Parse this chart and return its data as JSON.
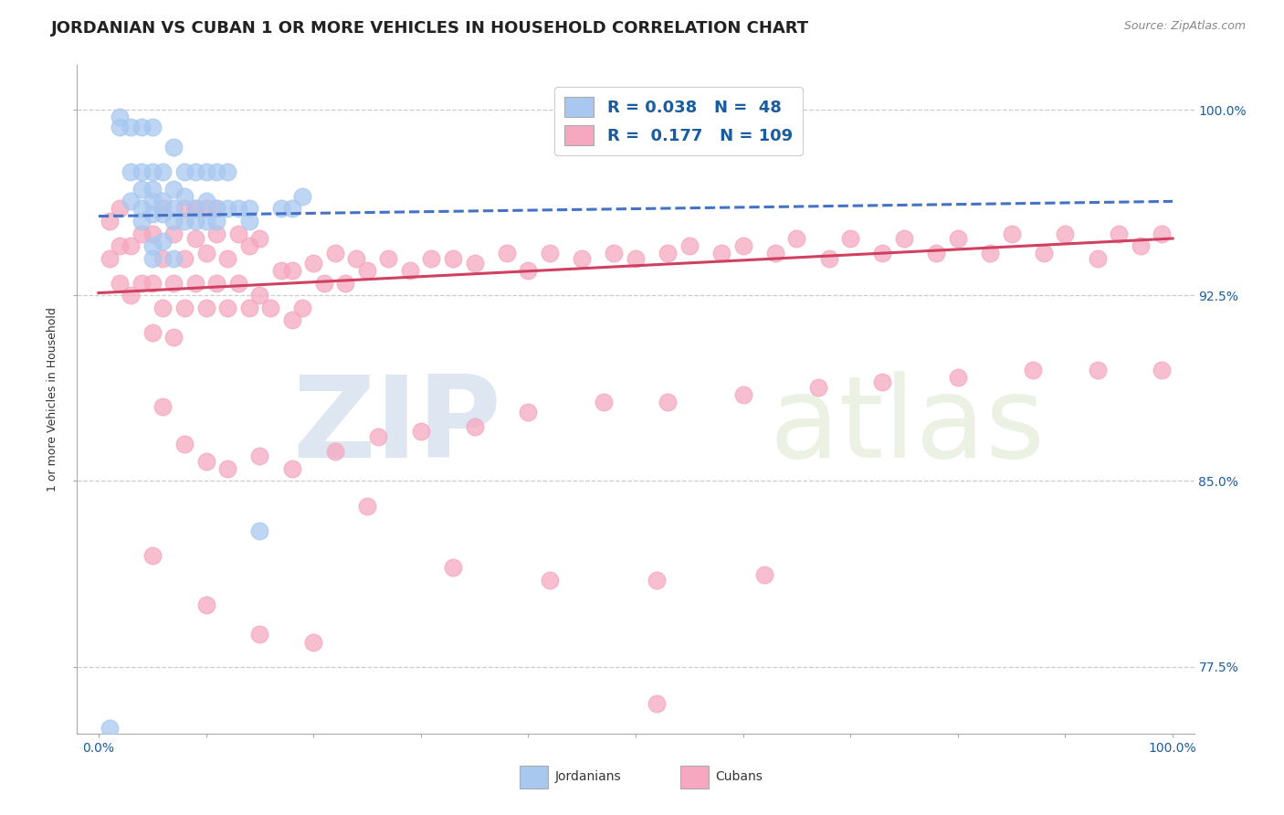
{
  "title": "JORDANIAN VS CUBAN 1 OR MORE VEHICLES IN HOUSEHOLD CORRELATION CHART",
  "source_text": "Source: ZipAtlas.com",
  "ylabel": "1 or more Vehicles in Household",
  "xlim": [
    -0.02,
    1.02
  ],
  "ylim": [
    0.748,
    1.018
  ],
  "y_ticks": [
    0.775,
    0.85,
    0.925,
    1.0
  ],
  "y_tick_labels": [
    "77.5%",
    "85.0%",
    "92.5%",
    "100.0%"
  ],
  "jordanian_R": 0.038,
  "jordanian_N": 48,
  "cuban_R": 0.177,
  "cuban_N": 109,
  "jordanian_color": "#A8C8F0",
  "cuban_color": "#F5A8C0",
  "jordanian_line_color": "#4472C4",
  "cuban_line_color": "#D04060",
  "legend_label_jordanian": "Jordanians",
  "legend_label_cuban": "Cubans",
  "watermark_zip": "ZIP",
  "watermark_atlas": "atlas",
  "background_color": "#FFFFFF",
  "grid_color": "#CCCCCC",
  "title_fontsize": 13,
  "axis_label_fontsize": 9,
  "tick_label_fontsize": 10,
  "jord_line_start_y": 0.957,
  "jord_line_end_y": 0.963,
  "cuban_line_start_y": 0.926,
  "cuban_line_end_y": 0.948,
  "jordanian_x": [
    0.01,
    0.02,
    0.02,
    0.03,
    0.03,
    0.03,
    0.04,
    0.04,
    0.04,
    0.04,
    0.04,
    0.05,
    0.05,
    0.05,
    0.05,
    0.05,
    0.05,
    0.06,
    0.06,
    0.06,
    0.06,
    0.07,
    0.07,
    0.07,
    0.07,
    0.08,
    0.08,
    0.08,
    0.09,
    0.09,
    0.1,
    0.1,
    0.1,
    0.11,
    0.11,
    0.12,
    0.12,
    0.13,
    0.14,
    0.15,
    0.17,
    0.19,
    0.05,
    0.07,
    0.09,
    0.11,
    0.14,
    0.18
  ],
  "jordanian_y": [
    0.75,
    0.993,
    0.997,
    0.963,
    0.975,
    0.993,
    0.955,
    0.96,
    0.968,
    0.975,
    0.993,
    0.945,
    0.958,
    0.963,
    0.968,
    0.975,
    0.993,
    0.947,
    0.958,
    0.963,
    0.975,
    0.955,
    0.96,
    0.968,
    0.985,
    0.955,
    0.965,
    0.975,
    0.96,
    0.975,
    0.955,
    0.963,
    0.975,
    0.96,
    0.975,
    0.96,
    0.975,
    0.96,
    0.96,
    0.83,
    0.96,
    0.965,
    0.94,
    0.94,
    0.955,
    0.955,
    0.955,
    0.96
  ],
  "cuban_x": [
    0.01,
    0.01,
    0.02,
    0.02,
    0.02,
    0.03,
    0.03,
    0.04,
    0.04,
    0.05,
    0.05,
    0.05,
    0.06,
    0.06,
    0.06,
    0.07,
    0.07,
    0.07,
    0.08,
    0.08,
    0.08,
    0.09,
    0.09,
    0.09,
    0.1,
    0.1,
    0.1,
    0.11,
    0.11,
    0.11,
    0.12,
    0.12,
    0.13,
    0.13,
    0.14,
    0.14,
    0.15,
    0.15,
    0.16,
    0.17,
    0.18,
    0.18,
    0.19,
    0.2,
    0.21,
    0.22,
    0.23,
    0.24,
    0.25,
    0.27,
    0.29,
    0.31,
    0.33,
    0.35,
    0.38,
    0.4,
    0.42,
    0.45,
    0.48,
    0.5,
    0.53,
    0.55,
    0.58,
    0.6,
    0.63,
    0.65,
    0.68,
    0.7,
    0.73,
    0.75,
    0.78,
    0.8,
    0.83,
    0.85,
    0.88,
    0.9,
    0.93,
    0.95,
    0.97,
    0.99,
    0.06,
    0.08,
    0.1,
    0.12,
    0.15,
    0.18,
    0.22,
    0.26,
    0.3,
    0.35,
    0.4,
    0.47,
    0.53,
    0.6,
    0.67,
    0.73,
    0.8,
    0.87,
    0.93,
    0.99,
    0.05,
    0.1,
    0.15,
    0.2,
    0.25,
    0.33,
    0.42,
    0.52,
    0.62,
    0.52
  ],
  "cuban_y": [
    0.94,
    0.955,
    0.93,
    0.945,
    0.96,
    0.925,
    0.945,
    0.93,
    0.95,
    0.91,
    0.93,
    0.95,
    0.92,
    0.94,
    0.96,
    0.908,
    0.93,
    0.95,
    0.92,
    0.94,
    0.96,
    0.93,
    0.948,
    0.96,
    0.92,
    0.942,
    0.96,
    0.93,
    0.95,
    0.96,
    0.92,
    0.94,
    0.93,
    0.95,
    0.92,
    0.945,
    0.925,
    0.948,
    0.92,
    0.935,
    0.915,
    0.935,
    0.92,
    0.938,
    0.93,
    0.942,
    0.93,
    0.94,
    0.935,
    0.94,
    0.935,
    0.94,
    0.94,
    0.938,
    0.942,
    0.935,
    0.942,
    0.94,
    0.942,
    0.94,
    0.942,
    0.945,
    0.942,
    0.945,
    0.942,
    0.948,
    0.94,
    0.948,
    0.942,
    0.948,
    0.942,
    0.948,
    0.942,
    0.95,
    0.942,
    0.95,
    0.94,
    0.95,
    0.945,
    0.95,
    0.88,
    0.865,
    0.858,
    0.855,
    0.86,
    0.855,
    0.862,
    0.868,
    0.87,
    0.872,
    0.878,
    0.882,
    0.882,
    0.885,
    0.888,
    0.89,
    0.892,
    0.895,
    0.895,
    0.895,
    0.82,
    0.8,
    0.788,
    0.785,
    0.84,
    0.815,
    0.81,
    0.81,
    0.812,
    0.76
  ]
}
